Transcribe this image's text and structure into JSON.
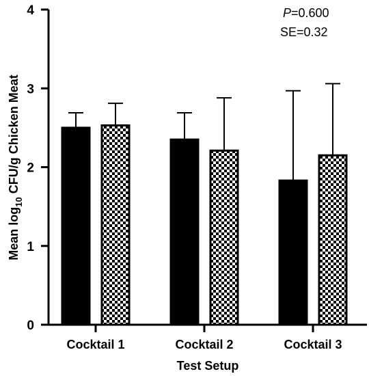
{
  "chart_data": {
    "type": "bar",
    "xlabel": "Test Setup",
    "ylabel": {
      "prefix": "Mean log",
      "subscript": "10",
      "suffix": " CFU/g Chicken Meat"
    },
    "ylim": [
      0,
      4
    ],
    "yticks": [
      "0",
      "1",
      "2",
      "3",
      "4"
    ],
    "categories": [
      "Cocktail 1",
      "Cocktail 2",
      "Cocktail 3"
    ],
    "series": [
      {
        "fill": "solid",
        "color": "#000000",
        "values": [
          2.5,
          2.35,
          1.83
        ],
        "error_upper": [
          2.69,
          2.69,
          2.97
        ]
      },
      {
        "fill": "checkered",
        "color": "#000000",
        "values": [
          2.53,
          2.21,
          2.15
        ],
        "error_upper": [
          2.81,
          2.88,
          3.06
        ]
      }
    ],
    "grid": false,
    "legend": "none",
    "annotations": {
      "p_italic": "P",
      "p_value": "=0.600",
      "se": "SE=0.32"
    }
  }
}
